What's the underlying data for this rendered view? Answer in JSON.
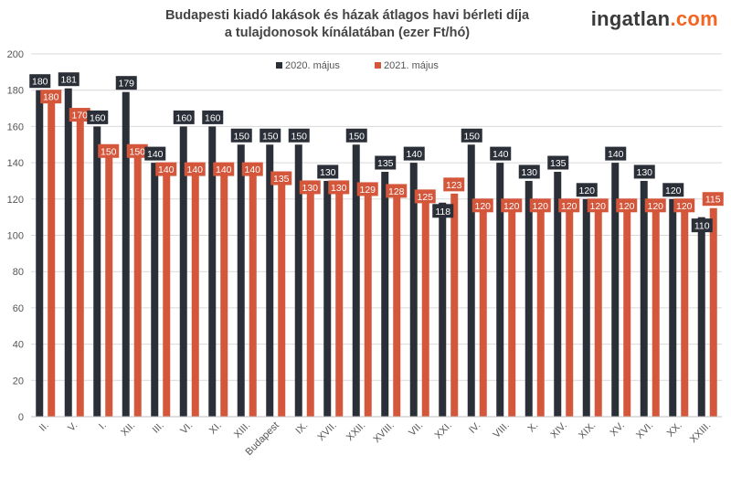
{
  "logo": {
    "main": "ingatlan",
    "tld": ".com"
  },
  "chart_data": {
    "type": "bar",
    "title": "Budapesti kiadó lakások és házak átlagos havi bérleti díja",
    "subtitle": "a tulajdonosok kínálatában (ezer Ft/hó)",
    "xlabel": "",
    "ylabel": "",
    "ylim": [
      0,
      200
    ],
    "yticks": [
      0,
      20,
      40,
      60,
      80,
      100,
      120,
      140,
      160,
      180,
      200
    ],
    "grid": true,
    "legend": "top-center",
    "categories": [
      "II.",
      "V.",
      "I.",
      "XII.",
      "III.",
      "VI.",
      "XI.",
      "XIII.",
      "Budapest",
      "IX.",
      "XVII.",
      "XXII.",
      "XVIII.",
      "VII.",
      "XXI.",
      "IV.",
      "VIII.",
      "X.",
      "XIV.",
      "XIX.",
      "XV.",
      "XVI.",
      "XX.",
      "XXIII."
    ],
    "series": [
      {
        "name": "2020. május",
        "color": "#2b2f38",
        "values": [
          180,
          181,
          160,
          179,
          140,
          160,
          160,
          150,
          150,
          150,
          130,
          150,
          135,
          140,
          118,
          150,
          140,
          130,
          135,
          120,
          140,
          130,
          120,
          110
        ]
      },
      {
        "name": "2021. május",
        "color": "#d4573b",
        "values": [
          180,
          170,
          150,
          150,
          140,
          140,
          140,
          140,
          135,
          130,
          130,
          129,
          128,
          125,
          123,
          120,
          120,
          120,
          120,
          120,
          120,
          120,
          120,
          115
        ]
      }
    ]
  }
}
